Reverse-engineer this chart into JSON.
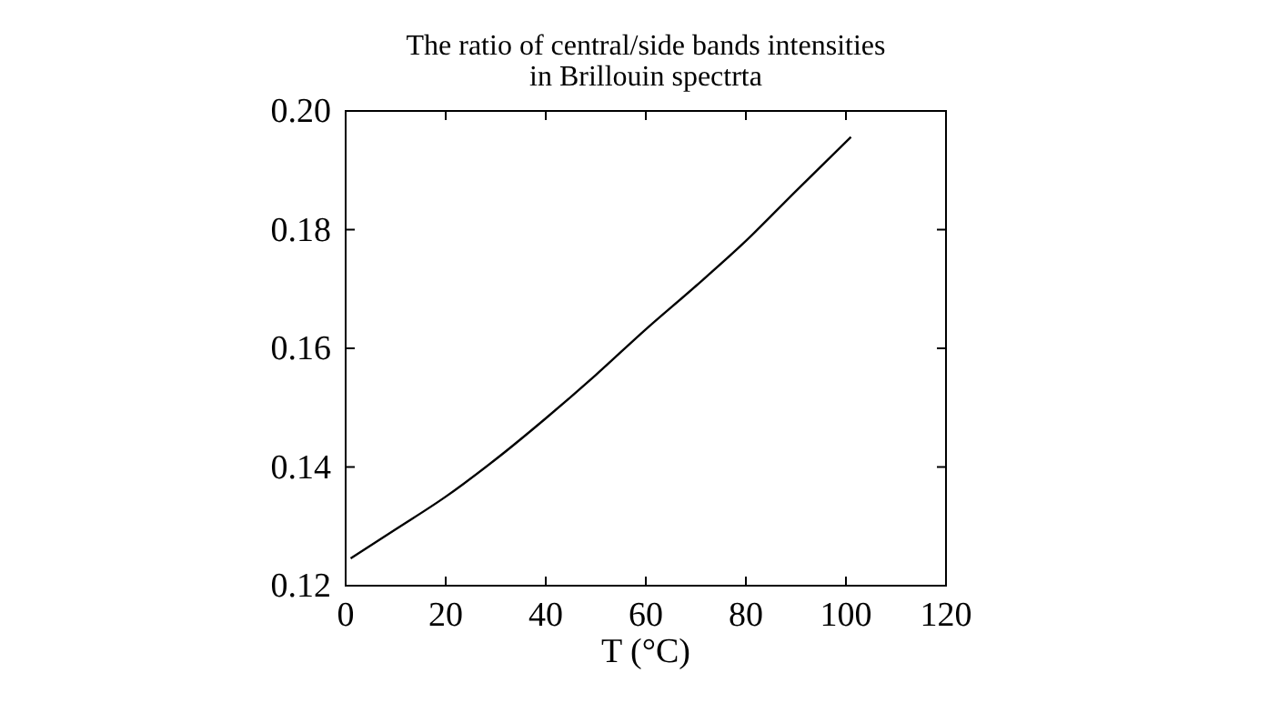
{
  "chart_data": {
    "type": "line",
    "title": "The ratio of central/side bands intensities\nin Brillouin spectrta",
    "xlabel": "T (°C)",
    "x": [
      1,
      10,
      20,
      30,
      40,
      50,
      60,
      70,
      80,
      90,
      101
    ],
    "series": [
      {
        "color": "#000000",
        "values": [
          0.1246,
          0.1295,
          0.135,
          0.1413,
          0.1482,
          0.1555,
          0.1632,
          0.1705,
          0.1781,
          0.1865,
          0.1956
        ]
      }
    ],
    "xlim": [
      0,
      120
    ],
    "xticks": [
      0,
      20,
      40,
      60,
      80,
      100,
      120
    ],
    "ylim": [
      0.12,
      0.2
    ],
    "yticks": [
      {
        "value": 0.12,
        "label": "0.12"
      },
      {
        "value": 0.14,
        "label": "0.14"
      },
      {
        "value": 0.16,
        "label": "0.16"
      },
      {
        "value": 0.18,
        "label": "0.18"
      },
      {
        "value": 0.2,
        "label": "0.20"
      }
    ],
    "grid": false,
    "marker": "none",
    "line_style": "solid"
  }
}
